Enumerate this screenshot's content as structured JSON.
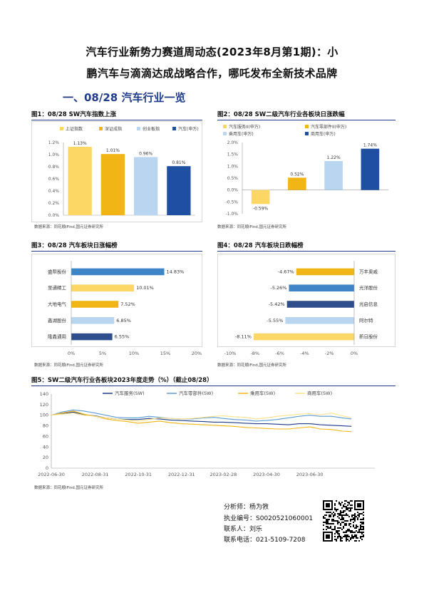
{
  "header": {
    "title_line1": "汽车行业新势力赛道周动态(2023年8月第1期)：小",
    "title_line2": "鹏汽车与滴滴达成战略合作，哪吒发布全新技术品牌",
    "section": "一、08/28 汽车行业一览"
  },
  "colors": {
    "accent": "#1f3b8a",
    "yellow_light": "#fcd766",
    "yellow": "#f2b516",
    "blue_light": "#b9d5ef",
    "blue": "#1f4fa0",
    "blue_mid": "#3d85c6",
    "blue_dark": "#2e4d8c"
  },
  "source_text": "数据来源：同花顺iFind,国元证券研究所",
  "charts": {
    "c1": {
      "title": "图1：08/28 SW汽车指数上涨",
      "chart_data": {
        "type": "bar",
        "categories": [
          "上证指数",
          "深证成指",
          "创业板指",
          "汽车(申万)"
        ],
        "values": [
          1.13,
          1.01,
          0.96,
          0.81
        ],
        "data_labels": [
          "1.13%",
          "1.01%",
          "0.96%",
          "0.81%"
        ],
        "legend": [
          "上证指数",
          "深证成指",
          "创业板指",
          "汽车(申万)"
        ],
        "legend_position": "top",
        "ylim": [
          0,
          1.2
        ],
        "yticks": [
          "0.0%",
          "0.2%",
          "0.4%",
          "0.6%",
          "0.8%",
          "1.0%",
          "1.2%"
        ]
      }
    },
    "c2": {
      "title": "图2：08/28 SW二级汽车行业各板块日涨跌幅",
      "chart_data": {
        "type": "bar",
        "categories": [
          "汽车服务II(申万)",
          "汽车零部件II(申万)",
          "乘用车(申万)",
          "商用车(申万)"
        ],
        "values": [
          -0.59,
          0.52,
          1.22,
          1.74
        ],
        "data_labels": [
          "-0.59%",
          "0.52%",
          "1.22%",
          "1.74%"
        ],
        "legend": [
          "汽车服务II(申万)",
          "汽车零部件II(申万)",
          "乘用车(申万)",
          "商用车(申万)"
        ],
        "legend_position": "top",
        "ylim": [
          -1.0,
          2.0
        ],
        "yticks": [
          "-1.0%",
          "-0.5%",
          "0.0%",
          "0.5%",
          "1.0%",
          "1.5%",
          "2.0%"
        ]
      }
    },
    "c3": {
      "title": "图3：08/28 汽车板块日涨幅榜",
      "chart_data": {
        "type": "bar",
        "orientation": "horizontal",
        "categories": [
          "盛帮股份",
          "至通精工",
          "大地电气",
          "鑫湖股份",
          "隆鑫通用"
        ],
        "values": [
          14.83,
          10.01,
          7.52,
          6.85,
          6.55
        ],
        "data_labels": [
          "14.83%",
          "10.01%",
          "7.52%",
          "6.85%",
          "6.55%"
        ],
        "xlim": [
          0,
          20
        ],
        "xticks": [
          "0%",
          "5%",
          "10%",
          "15%",
          "20%"
        ]
      }
    },
    "c4": {
      "title": "图4：08/28 汽车板块日跌幅榜",
      "chart_data": {
        "type": "bar",
        "orientation": "horizontal",
        "categories": [
          "万丰奥威",
          "光洋股份",
          "光启信息",
          "阿尔特",
          "新日股份"
        ],
        "values": [
          -4.67,
          -5.26,
          -5.42,
          -5.55,
          -8.11
        ],
        "data_labels": [
          "-4.67%",
          "-5.26%",
          "-5.42%",
          "-5.55%",
          "-8.11%"
        ],
        "xlim": [
          -10,
          0
        ],
        "xticks": [
          "-10%",
          "-8%",
          "-6%",
          "-4%",
          "-2%",
          "0%"
        ]
      }
    },
    "c5": {
      "title": "图5：SW二级汽车行业各板块2023年度走势（%）（截止08/28）",
      "chart_data": {
        "type": "line",
        "legend": [
          "汽车服务(SW)",
          "汽车零部件(SW)",
          "乘用车(SW)",
          "商用车(SW)"
        ],
        "legend_position": "top",
        "ylim": [
          0,
          140
        ],
        "yticks": [
          "0",
          "20",
          "40",
          "60",
          "80",
          "100",
          "120",
          "140"
        ],
        "xticks": [
          "2022-06-30",
          "2022-08-31",
          "2022-10-31",
          "2022-12-31",
          "2023-02-28",
          "2023-04-30",
          "2023-06-30"
        ],
        "x": [
          "2022-06-30",
          "2022-07-15",
          "2022-07-31",
          "2022-08-15",
          "2022-08-31",
          "2022-09-15",
          "2022-09-30",
          "2022-10-15",
          "2022-10-31",
          "2022-11-15",
          "2022-11-30",
          "2022-12-15",
          "2022-12-31",
          "2023-01-15",
          "2023-01-31",
          "2023-02-15",
          "2023-02-28",
          "2023-03-15",
          "2023-03-31",
          "2023-04-15",
          "2023-04-30",
          "2023-05-15",
          "2023-05-31",
          "2023-06-15",
          "2023-06-30",
          "2023-07-15",
          "2023-07-31",
          "2023-08-15",
          "2023-08-28"
        ],
        "series": [
          {
            "name": "汽车服务(SW)",
            "values": [
              100,
              103,
              106,
              101,
              99,
              95,
              93,
              92,
              92,
              94,
              93,
              91,
              90,
              89,
              88,
              87,
              87,
              86,
              85,
              84,
              84,
              83,
              82,
              84,
              84,
              82,
              81,
              80,
              79
            ]
          },
          {
            "name": "汽车零部件(SW)",
            "values": [
              100,
              106,
              110,
              108,
              104,
              100,
              96,
              95,
              95,
              98,
              96,
              94,
              93,
              93,
              95,
              96,
              94,
              92,
              91,
              89,
              90,
              92,
              95,
              98,
              100,
              98,
              98,
              95,
              93
            ]
          },
          {
            "name": "乘用车(SW)",
            "values": [
              100,
              104,
              108,
              102,
              98,
              93,
              90,
              88,
              85,
              87,
              89,
              86,
              84,
              83,
              82,
              81,
              80,
              79,
              77,
              76,
              75,
              74,
              74,
              76,
              78,
              74,
              73,
              70,
              69
            ]
          },
          {
            "name": "商用车(SW)",
            "values": [
              100,
              102,
              104,
              100,
              98,
              95,
              93,
              91,
              89,
              92,
              95,
              94,
              93,
              94,
              96,
              98,
              99,
              97,
              96,
              93,
              95,
              98,
              100,
              102,
              103,
              101,
              104,
              99,
              95
            ]
          }
        ]
      }
    }
  },
  "analyst": {
    "name": "分析师：杨为敩",
    "cert": "执业编号：S0020521060001",
    "contact": "联系人：刘乐",
    "phone": "联系电话：021-5109-7208"
  }
}
